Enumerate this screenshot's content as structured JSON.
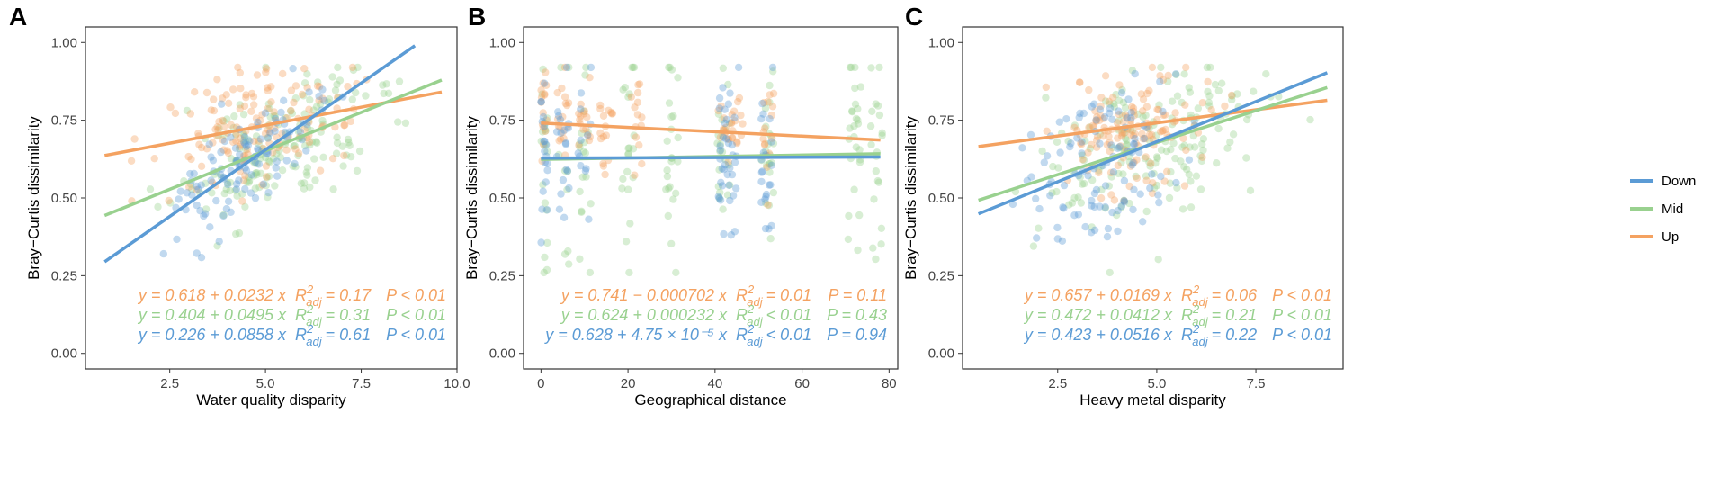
{
  "colors": {
    "Down": "#5b9bd5",
    "Mid": "#99d18f",
    "Up": "#f4a261",
    "frame": "#333333",
    "tick": "#444444"
  },
  "legend": {
    "items": [
      "Down",
      "Mid",
      "Up"
    ],
    "position": "right"
  },
  "chart_data": [
    {
      "type": "scatter",
      "panel_letter": "A",
      "xlabel": "Water quality disparity",
      "ylabel": "Bray−Curtis dissimilarity",
      "xlim": [
        0.3,
        10.0
      ],
      "ylim": [
        -0.05,
        1.05
      ],
      "x_ticks": [
        2.5,
        5.0,
        7.5,
        10.0
      ],
      "x_tick_labels": [
        "2.5",
        "5.0",
        "7.5",
        "10.0"
      ],
      "y_ticks": [
        0,
        0.25,
        0.5,
        0.75,
        1.0
      ],
      "y_tick_labels": [
        "0.00",
        "0.25",
        "0.50",
        "0.75",
        "1.00"
      ],
      "series": [
        {
          "name": "Down",
          "intercept": 0.226,
          "slope": 0.0858,
          "x_range": [
            0.8,
            8.9
          ],
          "x_spread": [
            1.5,
            7.5
          ],
          "sd": 0.08,
          "n": 110
        },
        {
          "name": "Mid",
          "intercept": 0.404,
          "slope": 0.0495,
          "x_range": [
            0.8,
            9.6
          ],
          "x_spread": [
            1.0,
            9.5
          ],
          "sd": 0.1,
          "n": 170
        },
        {
          "name": "Up",
          "intercept": 0.618,
          "slope": 0.0232,
          "x_range": [
            0.8,
            9.6
          ],
          "x_spread": [
            1.0,
            8.5
          ],
          "sd": 0.09,
          "n": 150
        }
      ],
      "equations": [
        {
          "series": "Up",
          "eq": "y = 0.618 + 0.0232 x",
          "r2": "= 0.17",
          "p": "P < 0.01"
        },
        {
          "series": "Mid",
          "eq": "y = 0.404 + 0.0495 x",
          "r2": "= 0.31",
          "p": "P < 0.01"
        },
        {
          "series": "Down",
          "eq": "y = 0.226 + 0.0858 x",
          "r2": "= 0.61",
          "p": "P < 0.01"
        }
      ]
    },
    {
      "type": "scatter",
      "panel_letter": "B",
      "xlabel": "Geographical distance",
      "ylabel": "Bray−Curtis dissimilarity",
      "xlim": [
        -4,
        82
      ],
      "ylim": [
        -0.05,
        1.05
      ],
      "x_ticks": [
        0,
        20,
        40,
        60,
        80
      ],
      "x_tick_labels": [
        "0",
        "20",
        "40",
        "60",
        "80"
      ],
      "y_ticks": [
        0,
        0.25,
        0.5,
        0.75,
        1.0
      ],
      "y_tick_labels": [
        "0.00",
        "0.25",
        "0.50",
        "0.75",
        "1.00"
      ],
      "series": [
        {
          "name": "Down",
          "intercept": 0.628,
          "slope": 4.75e-05,
          "x_range": [
            0,
            78
          ],
          "clusters": [
            0,
            5,
            10,
            42,
            44,
            52
          ],
          "sd": 0.15,
          "n": 110
        },
        {
          "name": "Mid",
          "intercept": 0.624,
          "slope": 0.000232,
          "x_range": [
            0,
            78
          ],
          "clusters": [
            0,
            5,
            10,
            20,
            30,
            42,
            52,
            72,
            77
          ],
          "sd": 0.17,
          "n": 180
        },
        {
          "name": "Up",
          "intercept": 0.741,
          "slope": -0.000702,
          "x_range": [
            0,
            78
          ],
          "clusters": [
            0,
            5,
            10,
            15,
            22,
            42,
            45,
            52
          ],
          "sd": 0.08,
          "n": 120
        }
      ],
      "equations": [
        {
          "series": "Up",
          "eq": "y = 0.741 − 0.000702 x",
          "r2": "= 0.01",
          "p": "P = 0.11"
        },
        {
          "series": "Mid",
          "eq": "y = 0.624 + 0.000232 x",
          "r2": "< 0.01",
          "p": "P = 0.43"
        },
        {
          "series": "Down",
          "eq": "y = 0.628 + 4.75 × 10⁻⁵ x",
          "r2": "< 0.01",
          "p": "P = 0.94"
        }
      ]
    },
    {
      "type": "scatter",
      "panel_letter": "C",
      "xlabel": "Heavy metal disparity",
      "ylabel": "Bray−Curtis dissimilarity",
      "xlim": [
        0.1,
        9.7
      ],
      "ylim": [
        -0.05,
        1.05
      ],
      "x_ticks": [
        2.5,
        5.0,
        7.5
      ],
      "x_tick_labels": [
        "2.5",
        "5.0",
        "7.5"
      ],
      "y_ticks": [
        0,
        0.25,
        0.5,
        0.75,
        1.0
      ],
      "y_tick_labels": [
        "0.00",
        "0.25",
        "0.50",
        "0.75",
        "1.00"
      ],
      "series": [
        {
          "name": "Down",
          "intercept": 0.423,
          "slope": 0.0516,
          "x_range": [
            0.5,
            9.3
          ],
          "x_spread": [
            0.6,
            6.5
          ],
          "sd": 0.13,
          "n": 110
        },
        {
          "name": "Mid",
          "intercept": 0.472,
          "slope": 0.0412,
          "x_range": [
            0.5,
            9.3
          ],
          "x_spread": [
            0.8,
            9.3
          ],
          "sd": 0.12,
          "n": 170
        },
        {
          "name": "Up",
          "intercept": 0.657,
          "slope": 0.0169,
          "x_range": [
            0.5,
            9.3
          ],
          "x_spread": [
            1.5,
            7.5
          ],
          "sd": 0.09,
          "n": 140
        }
      ],
      "equations": [
        {
          "series": "Up",
          "eq": "y = 0.657 + 0.0169 x",
          "r2": "= 0.06",
          "p": "P < 0.01"
        },
        {
          "series": "Mid",
          "eq": "y = 0.472 + 0.0412 x",
          "r2": "= 0.21",
          "p": "P < 0.01"
        },
        {
          "series": "Down",
          "eq": "y = 0.423 + 0.0516 x",
          "r2": "= 0.22",
          "p": "P < 0.01"
        }
      ]
    }
  ]
}
